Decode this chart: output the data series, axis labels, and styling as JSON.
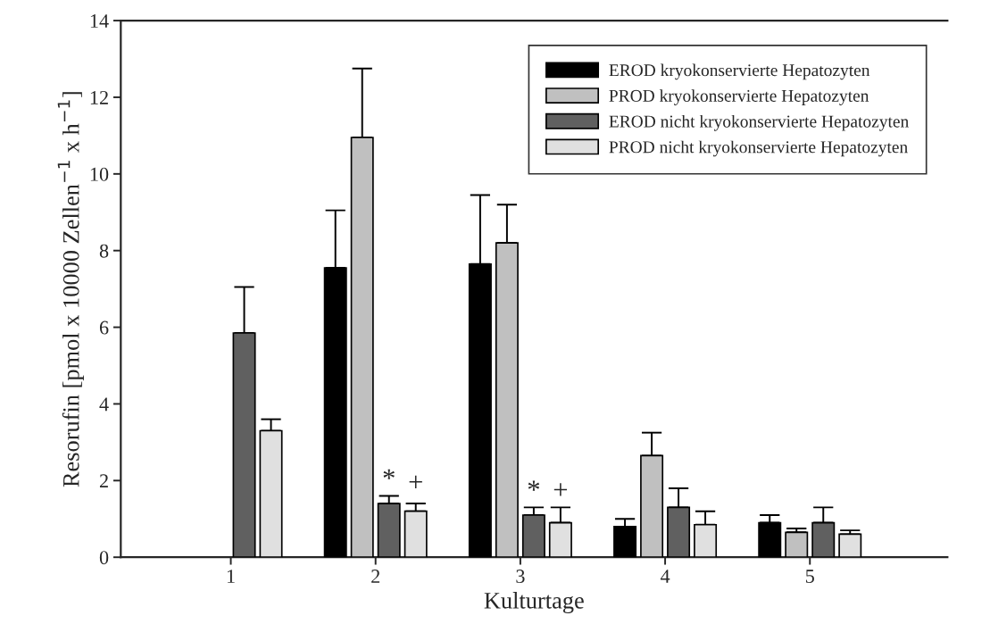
{
  "chart_data": {
    "type": "bar",
    "xlabel": "Kulturtage",
    "ylabel": "Resorufin [pmol x 10000 Zellen$^{−1}$ x h$^{−1}$]",
    "categories": [
      "1",
      "2",
      "3",
      "4",
      "5"
    ],
    "series": [
      {
        "name": "EROD kryokonservierte Hepatozyten",
        "color": "#000000",
        "values": [
          null,
          7.55,
          7.65,
          0.8,
          0.9
        ],
        "errors": [
          null,
          1.5,
          1.8,
          0.2,
          0.2
        ]
      },
      {
        "name": "PROD kryokonservierte Hepatozyten",
        "color": "#c0c0c0",
        "values": [
          null,
          10.95,
          8.2,
          2.65,
          0.65
        ],
        "errors": [
          null,
          1.8,
          1.0,
          0.6,
          0.1
        ]
      },
      {
        "name": "EROD nicht kryokonservierte Hepatozyten",
        "color": "#606060",
        "values": [
          5.85,
          1.4,
          1.1,
          1.3,
          0.9
        ],
        "errors": [
          1.2,
          0.2,
          0.2,
          0.5,
          0.4
        ]
      },
      {
        "name": "PROD nicht kryokonservierte Hepatozyten",
        "color": "#e0e0e0",
        "values": [
          3.3,
          1.2,
          0.9,
          0.85,
          0.6
        ],
        "errors": [
          0.3,
          0.2,
          0.4,
          0.35,
          0.1
        ]
      }
    ],
    "annotations": [
      {
        "text": "*",
        "x": "2",
        "y": 2.0
      },
      {
        "text": "+",
        "x": "2",
        "y": 1.9
      },
      {
        "text": "*",
        "x": "3",
        "y": 1.7
      },
      {
        "text": "+",
        "x": "3",
        "y": 1.7
      }
    ],
    "ylim": [
      0,
      14
    ],
    "yticks": [
      0,
      2,
      4,
      6,
      8,
      10,
      12,
      14
    ],
    "grid": false,
    "legend": "top right"
  }
}
